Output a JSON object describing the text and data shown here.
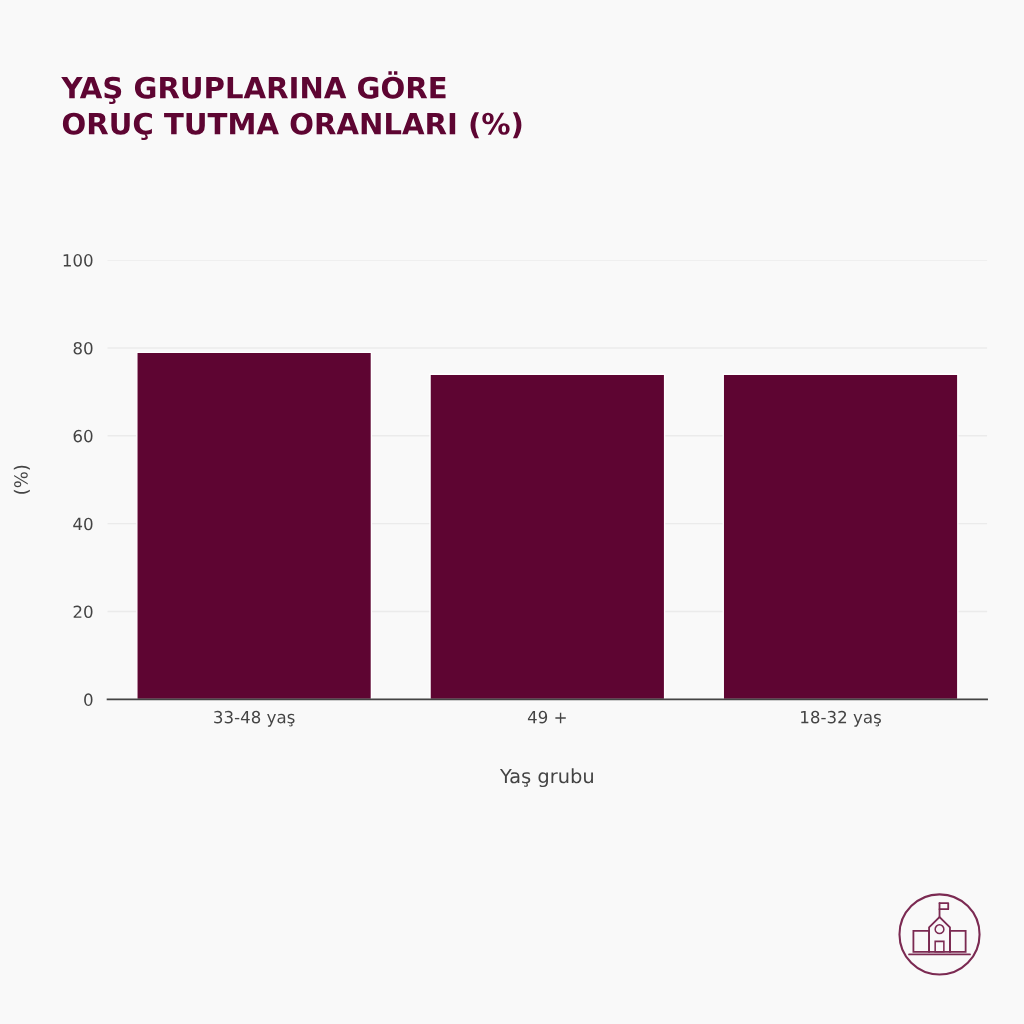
{
  "chart_data": {
    "type": "bar",
    "title": "YAŞ GRUPLARINA GÖRE\nORUÇ TUTMA ORANLARI (%)",
    "xlabel": "Yaş grubu",
    "ylabel": "(%)",
    "categories": [
      "33-48 yaş",
      "49 +",
      "18-32 yaş"
    ],
    "values": [
      79,
      74,
      74
    ],
    "color": "#5e0532",
    "ylim": [
      0,
      100
    ],
    "yticks": [
      0,
      20,
      40,
      60,
      80,
      100
    ],
    "grid": "y"
  }
}
